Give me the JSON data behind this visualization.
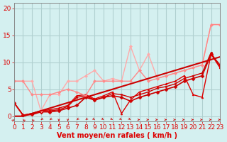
{
  "background_color": "#d4f0f0",
  "grid_color": "#b0d0d0",
  "xlabel": "Vent moyen/en rafales ( km/h )",
  "xlabel_color": "#dd0000",
  "tick_color": "#dd0000",
  "axis_label_fontsize": 7,
  "tick_fontsize": 6.5,
  "xlim": [
    0,
    23
  ],
  "ylim": [
    -1,
    21
  ],
  "yticks": [
    0,
    5,
    10,
    15,
    20
  ],
  "xticks": [
    0,
    1,
    2,
    3,
    4,
    5,
    6,
    7,
    8,
    9,
    10,
    11,
    12,
    13,
    14,
    15,
    16,
    17,
    18,
    19,
    20,
    21,
    22,
    23
  ],
  "series": [
    {
      "x": [
        0,
        1,
        2,
        3,
        4,
        5,
        6,
        7,
        8,
        9,
        10,
        11,
        12,
        13,
        14,
        15,
        16,
        17,
        18,
        19,
        20,
        21,
        22,
        23
      ],
      "y": [
        2.5,
        0.2,
        0.3,
        0.8,
        0.8,
        1.0,
        1.5,
        2.0,
        3.5,
        3.0,
        3.5,
        3.8,
        3.5,
        2.8,
        3.5,
        4.0,
        4.5,
        5.0,
        5.5,
        6.5,
        7.0,
        7.5,
        11.5,
        9.5
      ],
      "color": "#cc0000",
      "lw": 1.2,
      "marker": "D",
      "ms": 2.5
    },
    {
      "x": [
        0,
        1,
        2,
        3,
        4,
        5,
        6,
        7,
        8,
        9,
        10,
        11,
        12,
        13,
        14,
        15,
        16,
        17,
        18,
        19,
        20,
        21,
        22,
        23
      ],
      "y": [
        2.5,
        0.2,
        0.5,
        1.0,
        1.0,
        1.2,
        1.8,
        3.5,
        3.8,
        3.0,
        3.5,
        4.2,
        4.0,
        3.5,
        4.0,
        4.5,
        5.2,
        5.5,
        6.0,
        7.0,
        7.5,
        8.0,
        11.8,
        9.0
      ],
      "color": "#cc0000",
      "lw": 1.0,
      "marker": "s",
      "ms": 2.0
    },
    {
      "x": [
        0,
        1,
        2,
        3,
        4,
        5,
        6,
        7,
        8,
        9,
        10,
        11,
        12,
        13,
        14,
        15,
        16,
        17,
        18,
        19,
        20,
        21,
        22,
        23
      ],
      "y": [
        2.5,
        0.2,
        0.5,
        1.0,
        1.2,
        1.5,
        2.0,
        3.8,
        4.0,
        3.2,
        3.8,
        4.5,
        0.5,
        3.0,
        4.5,
        5.0,
        5.5,
        6.0,
        6.5,
        7.5,
        4.0,
        3.5,
        11.5,
        9.0
      ],
      "color": "#dd0000",
      "lw": 1.0,
      "marker": "^",
      "ms": 2.0
    },
    {
      "x": [
        0,
        1,
        2,
        3,
        4,
        5,
        6,
        7,
        8,
        9,
        10,
        11,
        12,
        13,
        14,
        15,
        16,
        17,
        18,
        19,
        20,
        21,
        22,
        23
      ],
      "y": [
        6.5,
        6.5,
        6.5,
        1.0,
        4.0,
        4.0,
        6.5,
        6.5,
        7.5,
        8.5,
        6.5,
        7.0,
        6.5,
        13.0,
        8.5,
        11.5,
        7.0,
        7.5,
        8.0,
        8.5,
        9.0,
        9.5,
        17.0,
        17.0
      ],
      "color": "#ffaaaa",
      "lw": 1.0,
      "marker": "D",
      "ms": 2.0
    },
    {
      "x": [
        0,
        1,
        2,
        3,
        4,
        5,
        6,
        7,
        8,
        9,
        10,
        11,
        12,
        13,
        14,
        15,
        16,
        17,
        18,
        19,
        20,
        21,
        22,
        23
      ],
      "y": [
        6.5,
        6.5,
        4.0,
        4.0,
        4.0,
        4.5,
        5.0,
        4.5,
        3.8,
        6.5,
        6.5,
        6.5,
        6.5,
        6.5,
        8.5,
        6.5,
        7.0,
        7.5,
        8.0,
        8.5,
        9.0,
        9.5,
        17.0,
        17.0
      ],
      "color": "#ff8888",
      "lw": 1.0,
      "marker": "D",
      "ms": 2.0
    },
    {
      "x": [
        0,
        1,
        2,
        3,
        4,
        5,
        6,
        7,
        8,
        9,
        10,
        11,
        12,
        13,
        14,
        15,
        16,
        17,
        18,
        19,
        20,
        21,
        22,
        23
      ],
      "y": [
        0,
        0,
        0.5,
        1.0,
        1.5,
        2.0,
        2.5,
        3.0,
        3.5,
        4.0,
        4.5,
        5.0,
        5.5,
        6.0,
        6.5,
        7.0,
        7.5,
        8.0,
        8.5,
        9.0,
        9.5,
        10.0,
        10.5,
        11.0
      ],
      "color": "#cc0000",
      "lw": 1.5,
      "marker": null,
      "ms": 0
    }
  ],
  "wind_x": [
    0,
    1,
    2,
    3,
    4,
    5,
    6,
    7,
    8,
    9,
    10,
    11,
    12,
    13,
    14,
    15,
    16,
    17,
    18,
    19,
    20,
    21,
    22,
    23
  ],
  "wind_directions": [
    135,
    225,
    225,
    315,
    315,
    0,
    0,
    315,
    315,
    45,
    45,
    45,
    45,
    45,
    90,
    90,
    90,
    90,
    90,
    90,
    90,
    90,
    90,
    90
  ]
}
